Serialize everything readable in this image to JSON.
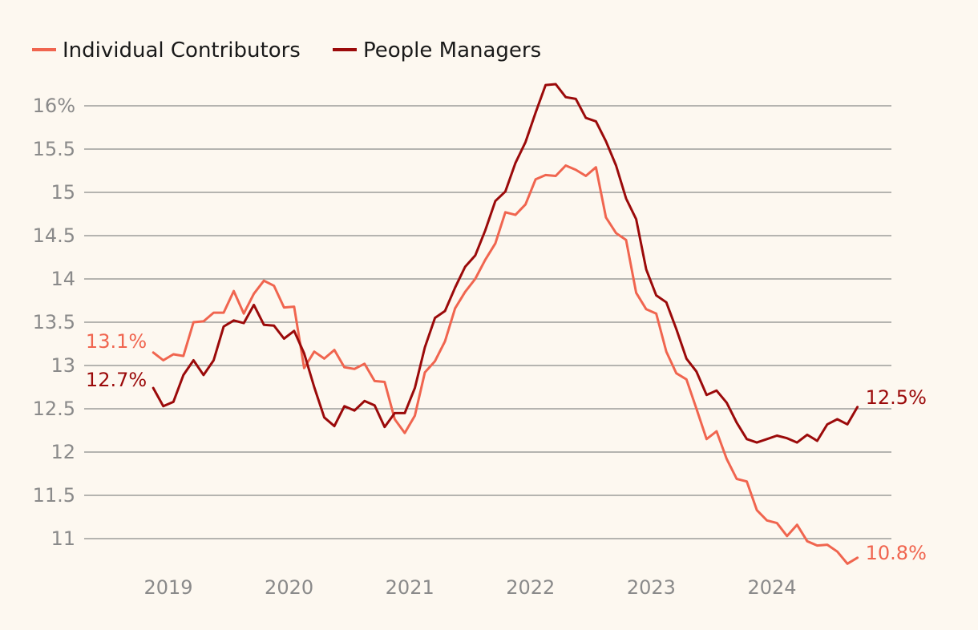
{
  "chart_data": {
    "type": "line",
    "title": "",
    "xlabel": "",
    "ylabel": "",
    "ylim": [
      10.6,
      16.45
    ],
    "xlim": [
      2018.75,
      2024.95
    ],
    "y_ticks": [
      {
        "value": 16,
        "label": "16%"
      },
      {
        "value": 15.5,
        "label": "15.5"
      },
      {
        "value": 15,
        "label": "15"
      },
      {
        "value": 14.5,
        "label": "14.5"
      },
      {
        "value": 14,
        "label": "14"
      },
      {
        "value": 13.5,
        "label": "13.5"
      },
      {
        "value": 13,
        "label": "13"
      },
      {
        "value": 12.5,
        "label": "12.5"
      },
      {
        "value": 12,
        "label": "12"
      },
      {
        "value": 11.5,
        "label": "11.5"
      },
      {
        "value": 11,
        "label": "11"
      }
    ],
    "x_ticks": [
      {
        "value": 2019,
        "label": "2019"
      },
      {
        "value": 2020,
        "label": "2020"
      },
      {
        "value": 2021,
        "label": "2021"
      },
      {
        "value": 2022,
        "label": "2022"
      },
      {
        "value": 2023,
        "label": "2023"
      },
      {
        "value": 2024,
        "label": "2024"
      }
    ],
    "grid": true,
    "legend": "top-left",
    "x_start": 2018.875,
    "x_step": 0.08333,
    "series": [
      {
        "name": "Individual Contributors",
        "color": "#f0654f",
        "start_label": "13.1%",
        "end_label": "10.8%",
        "values": [
          13.15,
          13.06,
          13.13,
          13.11,
          13.5,
          13.51,
          13.61,
          13.61,
          13.86,
          13.6,
          13.83,
          13.98,
          13.92,
          13.67,
          13.68,
          12.97,
          13.16,
          13.08,
          13.18,
          12.98,
          12.96,
          13.02,
          12.82,
          12.81,
          12.38,
          12.22,
          12.42,
          12.92,
          13.05,
          13.28,
          13.66,
          13.85,
          14.0,
          14.22,
          14.41,
          14.77,
          14.74,
          14.86,
          15.15,
          15.2,
          15.19,
          15.31,
          15.26,
          15.19,
          15.29,
          14.71,
          14.53,
          14.45,
          13.84,
          13.65,
          13.6,
          13.16,
          12.91,
          12.84,
          12.5,
          12.15,
          12.24,
          11.92,
          11.69,
          11.66,
          11.33,
          11.21,
          11.18,
          11.03,
          11.16,
          10.97,
          10.92,
          10.93,
          10.85,
          10.71,
          10.78
        ]
      },
      {
        "name": "People Managers",
        "color": "#9b0a0a",
        "start_label": "12.7%",
        "end_label": "12.5%",
        "values": [
          12.74,
          12.53,
          12.58,
          12.89,
          13.06,
          12.89,
          13.06,
          13.45,
          13.52,
          13.49,
          13.7,
          13.47,
          13.46,
          13.31,
          13.4,
          13.14,
          12.75,
          12.4,
          12.3,
          12.53,
          12.48,
          12.59,
          12.54,
          12.29,
          12.45,
          12.45,
          12.74,
          13.21,
          13.55,
          13.63,
          13.9,
          14.14,
          14.27,
          14.56,
          14.9,
          15.01,
          15.34,
          15.58,
          15.92,
          16.24,
          16.25,
          16.1,
          16.08,
          15.86,
          15.82,
          15.59,
          15.31,
          14.93,
          14.69,
          14.11,
          13.81,
          13.73,
          13.42,
          13.08,
          12.93,
          12.66,
          12.71,
          12.57,
          12.34,
          12.15,
          12.11,
          12.15,
          12.19,
          12.16,
          12.11,
          12.2,
          12.13,
          12.32,
          12.38,
          12.32,
          12.52
        ]
      }
    ]
  }
}
